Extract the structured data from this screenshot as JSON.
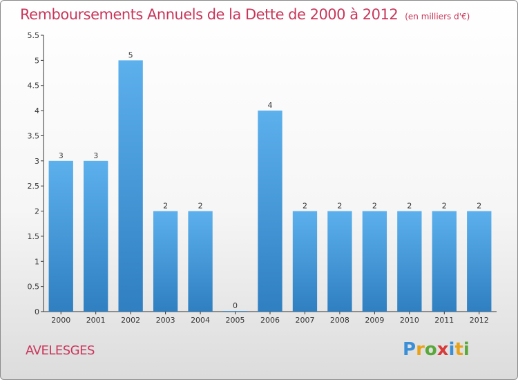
{
  "title": "Remboursements Annuels de la Dette de 2000 à 2012",
  "subtitle": "(en milliers d'€)",
  "commune": "AVELESGES",
  "logo": {
    "letters": [
      "P",
      "r",
      "o",
      "x",
      "i",
      "t",
      "i"
    ],
    "colors": [
      "#3b8fd6",
      "#e8a21a",
      "#5aa83a",
      "#d83a3a",
      "#3b8fd6",
      "#e8a21a",
      "#5aa83a"
    ]
  },
  "colors": {
    "title": "#c8365a",
    "bar_top": "#5cb0ec",
    "bar_bottom": "#2f7fc1",
    "axis": "#333333"
  },
  "chart_data": {
    "type": "bar",
    "categories": [
      "2000",
      "2001",
      "2002",
      "2003",
      "2004",
      "2005",
      "2006",
      "2007",
      "2008",
      "2009",
      "2010",
      "2011",
      "2012"
    ],
    "values": [
      3,
      3,
      5,
      2,
      2,
      0,
      4,
      2,
      2,
      2,
      2,
      2,
      2
    ],
    "data_labels": [
      "3",
      "3",
      "5",
      "2",
      "2",
      "0",
      "4",
      "2",
      "2",
      "2",
      "2",
      "2",
      "2"
    ],
    "y_ticks": [
      "0",
      "0.5",
      "1",
      "1.5",
      "2",
      "2.5",
      "3",
      "3.5",
      "4",
      "4.5",
      "5",
      "5.5"
    ],
    "ylim": [
      0,
      5.5
    ],
    "grid": false,
    "legend": "none"
  }
}
